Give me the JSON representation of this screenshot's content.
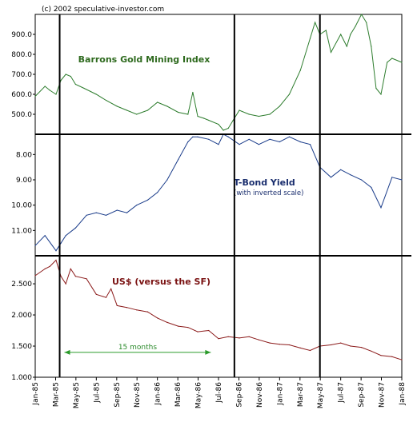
{
  "chart_data": [
    {
      "type": "line",
      "title": "Barrons Gold Mining Index",
      "copyright": "(c) 2002 speculative-investor.com",
      "ylim": [
        400,
        1000
      ],
      "yticks": [
        "900.0",
        "800.0",
        "700.0",
        "600.0",
        "500.0"
      ],
      "ytick_values": [
        900,
        800,
        700,
        600,
        500
      ],
      "color": "#2e7d2e",
      "series": [
        {
          "x": [
            1985.0,
            1985.08,
            1985.12,
            1985.17,
            1985.21,
            1985.25,
            1985.29,
            1985.33,
            1985.4,
            1985.5,
            1985.58,
            1985.67,
            1985.75,
            1985.83,
            1985.92,
            1986.0,
            1986.08,
            1986.17,
            1986.25,
            1986.29,
            1986.33,
            1986.38,
            1986.42,
            1986.5,
            1986.54,
            1986.58,
            1986.62,
            1986.67,
            1986.75,
            1986.83,
            1986.92,
            1987.0,
            1987.08,
            1987.17,
            1987.25,
            1987.29,
            1987.33,
            1987.38,
            1987.42,
            1987.5,
            1987.55,
            1987.58,
            1987.62,
            1987.67,
            1987.71,
            1987.75,
            1987.79,
            1987.83,
            1987.88,
            1987.92,
            1988.0
          ],
          "y": [
            590,
            640,
            620,
            600,
            670,
            700,
            690,
            650,
            630,
            600,
            570,
            540,
            520,
            500,
            520,
            560,
            540,
            510,
            500,
            610,
            490,
            480,
            470,
            450,
            420,
            430,
            470,
            520,
            500,
            490,
            500,
            540,
            600,
            720,
            880,
            960,
            900,
            920,
            810,
            900,
            840,
            900,
            940,
            1000,
            960,
            840,
            630,
            600,
            760,
            780,
            760
          ]
        }
      ]
    },
    {
      "type": "line",
      "title": "T-Bond Yield",
      "subtitle": "(with inverted scale)",
      "ylim": [
        7.2,
        12.0
      ],
      "inverted": true,
      "yticks": [
        "8.00",
        "9.00",
        "10.00",
        "11.00"
      ],
      "ytick_values": [
        8,
        9,
        10,
        11
      ],
      "color": "#1a3c8a",
      "series": [
        {
          "x": [
            1985.0,
            1985.08,
            1985.17,
            1985.21,
            1985.25,
            1985.33,
            1985.42,
            1985.5,
            1985.58,
            1985.67,
            1985.75,
            1985.83,
            1985.92,
            1986.0,
            1986.08,
            1986.17,
            1986.25,
            1986.29,
            1986.33,
            1986.42,
            1986.5,
            1986.54,
            1986.58,
            1986.67,
            1986.75,
            1986.83,
            1986.92,
            1987.0,
            1987.08,
            1987.17,
            1987.25,
            1987.33,
            1987.42,
            1987.5,
            1987.58,
            1987.67,
            1987.75,
            1987.83,
            1987.92,
            1988.0
          ],
          "y": [
            11.6,
            11.2,
            11.8,
            11.5,
            11.2,
            10.9,
            10.4,
            10.3,
            10.4,
            10.2,
            10.3,
            10.0,
            9.8,
            9.5,
            9.0,
            8.2,
            7.5,
            7.3,
            7.3,
            7.4,
            7.6,
            7.2,
            7.3,
            7.6,
            7.4,
            7.6,
            7.4,
            7.5,
            7.3,
            7.5,
            7.6,
            8.5,
            8.9,
            8.6,
            8.8,
            9.0,
            9.3,
            10.1,
            8.9,
            9.0
          ]
        }
      ]
    },
    {
      "type": "line",
      "title": "US$ (versus the SF)",
      "ylim": [
        1.0,
        2.95
      ],
      "yticks": [
        "2.500",
        "2.000",
        "1.500",
        "1.000"
      ],
      "ytick_values": [
        2.5,
        2.0,
        1.5,
        1.0
      ],
      "color": "#8b1a1a",
      "series": [
        {
          "x": [
            1985.0,
            1985.08,
            1985.12,
            1985.17,
            1985.21,
            1985.25,
            1985.29,
            1985.33,
            1985.42,
            1985.5,
            1985.58,
            1985.62,
            1985.67,
            1985.75,
            1985.83,
            1985.92,
            1986.0,
            1986.08,
            1986.17,
            1986.25,
            1986.33,
            1986.42,
            1986.5,
            1986.58,
            1986.67,
            1986.75,
            1986.83,
            1986.92,
            1987.0,
            1987.08,
            1987.17,
            1987.25,
            1987.33,
            1987.42,
            1987.5,
            1987.58,
            1987.67,
            1987.75,
            1987.83,
            1987.92,
            1988.0
          ],
          "y": [
            2.63,
            2.74,
            2.78,
            2.88,
            2.62,
            2.5,
            2.74,
            2.62,
            2.58,
            2.33,
            2.28,
            2.42,
            2.15,
            2.12,
            2.08,
            2.05,
            1.95,
            1.88,
            1.82,
            1.8,
            1.73,
            1.75,
            1.62,
            1.65,
            1.63,
            1.65,
            1.6,
            1.55,
            1.53,
            1.52,
            1.47,
            1.43,
            1.5,
            1.52,
            1.55,
            1.5,
            1.48,
            1.42,
            1.35,
            1.33,
            1.28
          ]
        }
      ]
    },
    {
      "type": "line",
      "xlabel": "",
      "xticks": [
        "Jan-85",
        "Mar-85",
        "May-85",
        "Jul-85",
        "Sep-85",
        "Nov-85",
        "Jan-86",
        "Mar-86",
        "May-86",
        "Jul-86",
        "Sep-86",
        "Nov-86",
        "Jan-87",
        "Mar-87",
        "May-87",
        "Jul-87",
        "Sep-87",
        "Nov-87",
        "Jan-88"
      ],
      "xtick_values": [
        1985.0,
        1985.167,
        1985.333,
        1985.5,
        1985.667,
        1985.833,
        1986.0,
        1986.167,
        1986.333,
        1986.5,
        1986.667,
        1986.833,
        1987.0,
        1987.167,
        1987.333,
        1987.5,
        1987.667,
        1987.833,
        1988.0
      ],
      "vertical_markers": [
        1985.2,
        1986.63,
        1987.33
      ],
      "annotation": {
        "text": "15 months",
        "from": 1985.2,
        "to": 1986.45,
        "y": 1.4
      }
    }
  ]
}
